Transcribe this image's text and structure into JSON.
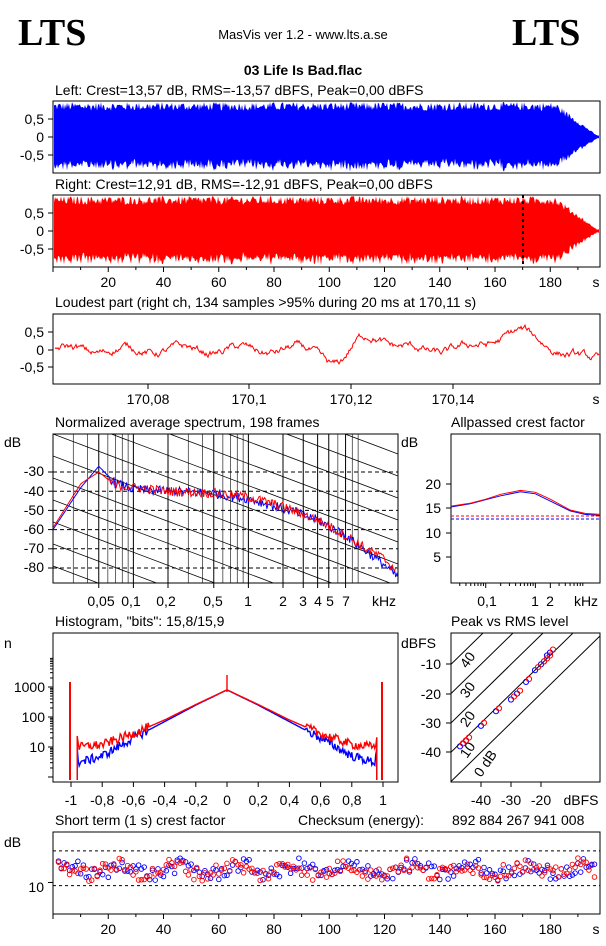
{
  "header": {
    "logo_left": "LTS",
    "logo_right": "LTS",
    "app_title": "MasVis ver 1.2 - www.lts.a.se",
    "track_title": "03 Life Is Bad.flac"
  },
  "colors": {
    "left": "#0000ff",
    "right": "#ff0000",
    "axis": "#000000"
  },
  "chart_data": [
    {
      "id": "left-waveform",
      "type": "area",
      "title": "Left: Crest=13,57 dB, RMS=-13,57 dBFS, Peak=0,00 dBFS",
      "yticks": [
        "0,5",
        "0",
        "-0,5"
      ],
      "ylim": [
        -1,
        1
      ],
      "xlim": [
        0,
        198
      ]
    },
    {
      "id": "right-waveform",
      "type": "area",
      "title": "Right: Crest=12,91 dB, RMS=-12,91 dBFS, Peak=0,00 dBFS",
      "yticks": [
        "0,5",
        "0",
        "-0,5"
      ],
      "ylim": [
        -1,
        1
      ],
      "xlim": [
        0,
        198
      ],
      "xticks": [
        "20",
        "40",
        "60",
        "80",
        "100",
        "120",
        "140",
        "160",
        "180"
      ],
      "xunit": "s",
      "marker_x": 170.11
    },
    {
      "id": "loudest-part",
      "type": "line",
      "title": "Loudest part (right ch, 134 samples >95% during 20 ms at 170,11 s)",
      "yticks": [
        "0,5",
        "0",
        "-0,5"
      ],
      "ylim": [
        -1,
        1
      ],
      "xticks": [
        "170,08",
        "170,1",
        "170,12",
        "170,14"
      ],
      "xunit": "s"
    },
    {
      "id": "spectrum",
      "type": "line",
      "title": "Normalized average spectrum, 198 frames",
      "ylabel": "dB",
      "yticks": [
        "-30",
        "-40",
        "-50",
        "-60",
        "-70",
        "-80"
      ],
      "xticks": [
        "0,05",
        "0,1",
        "0,2",
        "0,5",
        "1",
        "2",
        "3",
        "4",
        "5",
        "7"
      ],
      "xunit": "kHz",
      "series": [
        {
          "x": [
            0.02,
            0.035,
            0.05,
            0.07,
            0.1,
            0.2,
            0.5,
            1,
            2,
            4,
            7,
            10,
            15,
            20
          ],
          "values": [
            -60,
            -38,
            -27,
            -36,
            -39,
            -40,
            -41,
            -44,
            -49,
            -55,
            -63,
            -70,
            -78,
            -85
          ]
        },
        {
          "x": [
            0.02,
            0.035,
            0.05,
            0.07,
            0.1,
            0.2,
            0.5,
            1,
            2,
            4,
            7,
            10,
            15,
            20
          ],
          "values": [
            -59,
            -36,
            -30,
            -37,
            -38,
            -40,
            -41,
            -43,
            -48,
            -55,
            -63,
            -69,
            -75,
            -82
          ]
        }
      ]
    },
    {
      "id": "allpassed-crest",
      "type": "line",
      "title": "Allpassed crest factor",
      "ylabel": "dB",
      "yticks": [
        "20",
        "15",
        "10",
        "5"
      ],
      "xticks": [
        "0,1",
        "1",
        "2"
      ],
      "xunit": "kHz",
      "series": [
        {
          "x": [
            0.02,
            0.05,
            0.1,
            0.2,
            0.5,
            1,
            2,
            5,
            10,
            20
          ],
          "values": [
            15.3,
            16.0,
            16.8,
            17.6,
            18.4,
            18.0,
            16.5,
            14.5,
            13.8,
            13.6
          ]
        },
        {
          "x": [
            0.02,
            0.05,
            0.1,
            0.2,
            0.5,
            1,
            2,
            5,
            10,
            20
          ],
          "values": [
            15.5,
            16.1,
            16.9,
            17.9,
            18.7,
            18.3,
            16.9,
            14.7,
            14.0,
            13.8
          ]
        }
      ],
      "reference_lines": [
        12.9,
        13.6
      ]
    },
    {
      "id": "histogram",
      "type": "line",
      "title": "Histogram, \"bits\": 15,8/15,9",
      "ylabel": "n",
      "yticks": [
        "1000",
        "100",
        "10"
      ],
      "xticks": [
        "-1",
        "-0,8",
        "-0,6",
        "-0,4",
        "-0,2",
        "0",
        "0,2",
        "0,4",
        "0,6",
        "0,8",
        "1"
      ],
      "series": [
        {
          "x": [
            -1,
            -0.95,
            -0.8,
            -0.6,
            -0.4,
            -0.2,
            0,
            0.2,
            0.4,
            0.6,
            0.8,
            0.95,
            1
          ],
          "values": [
            1500,
            3,
            5,
            20,
            70,
            250,
            800,
            250,
            70,
            20,
            5,
            3,
            1500
          ]
        },
        {
          "x": [
            -1,
            -0.95,
            -0.8,
            -0.6,
            -0.4,
            -0.2,
            0,
            0.2,
            0.4,
            0.6,
            0.8,
            0.95,
            1
          ],
          "values": [
            1500,
            10,
            12,
            28,
            80,
            260,
            800,
            260,
            80,
            28,
            12,
            10,
            1500
          ]
        }
      ]
    },
    {
      "id": "peak-vs-rms",
      "type": "scatter",
      "title": "Peak vs RMS level",
      "ylabel": "dBFS",
      "yticks": [
        "-10",
        "-20",
        "-30",
        "-40"
      ],
      "xticks": [
        "-40",
        "-30",
        "-20"
      ],
      "xunit": "dBFS",
      "diagonal_labels": [
        "40",
        "30",
        "20",
        "10",
        "0 dB"
      ],
      "series": [
        {
          "x": [
            -47,
            -46,
            -45,
            -40,
            -35,
            -30,
            -28,
            -25,
            -22,
            -20,
            -19,
            -18,
            -17
          ],
          "values": [
            -38,
            -37,
            -36,
            -31,
            -26,
            -22,
            -20,
            -16,
            -12,
            -10,
            -9,
            -7,
            -6
          ]
        },
        {
          "x": [
            -46,
            -45,
            -44,
            -39,
            -34,
            -29,
            -27,
            -24,
            -21,
            -19,
            -18,
            -17,
            -16
          ],
          "values": [
            -37,
            -36,
            -35,
            -30,
            -25,
            -21,
            -19,
            -15,
            -11,
            -9,
            -8,
            -7,
            -5
          ]
        }
      ]
    },
    {
      "id": "short-term-crest",
      "type": "scatter",
      "title": "Short term (1 s) crest factor",
      "checksum_label": "Checksum (energy):",
      "checksum_value": "892 884 267 941 008",
      "ylabel": "dB",
      "yticks": [
        "10"
      ],
      "xticks": [
        "20",
        "40",
        "60",
        "80",
        "100",
        "120",
        "140",
        "160",
        "180"
      ],
      "xunit": "s",
      "ylim": [
        5,
        18
      ],
      "xlim": [
        0,
        198
      ],
      "reference_lines": [
        9.5,
        15
      ]
    }
  ]
}
